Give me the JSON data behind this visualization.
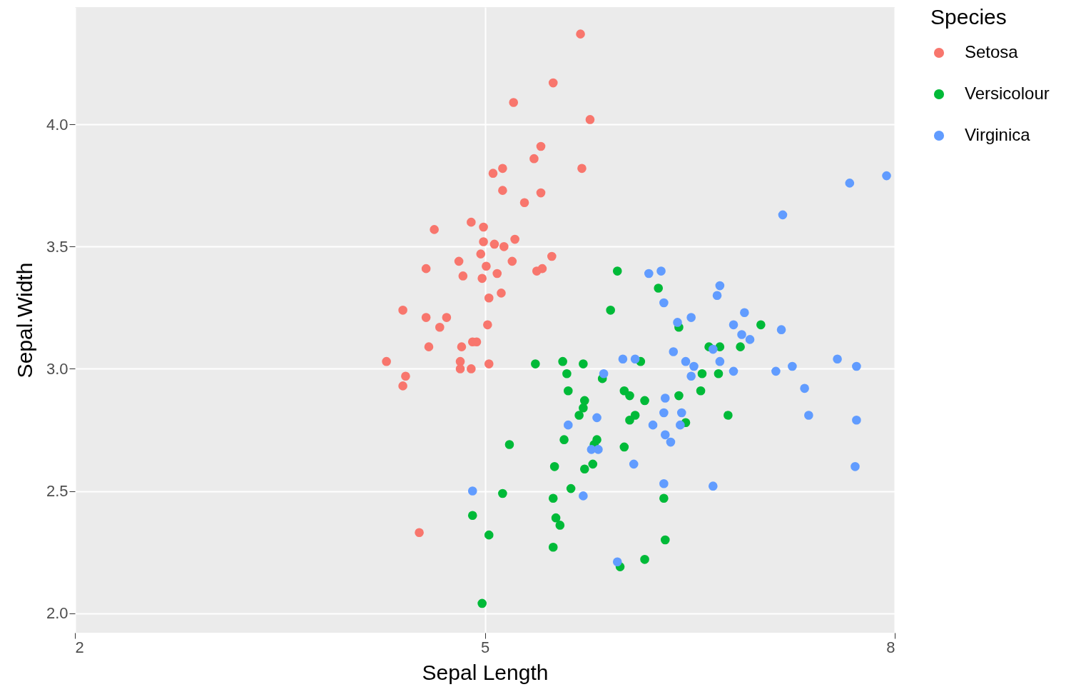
{
  "chart_data": {
    "type": "scatter",
    "xlabel": "Sepal Length",
    "ylabel": "Sepal.Width",
    "legend_title": "Species",
    "legend": "right",
    "grid": true,
    "marker": "circle",
    "xlim": [
      2,
      8
    ],
    "ylim": [
      1.92,
      4.48
    ],
    "xticks": [
      2,
      5,
      8
    ],
    "yticks": [
      {
        "value": 2,
        "label": "2.0"
      },
      {
        "value": 2.5,
        "label": "2.5"
      },
      {
        "value": 3,
        "label": "3.0"
      },
      {
        "value": 3.5,
        "label": "3.5"
      },
      {
        "value": 4,
        "label": "4.0"
      }
    ],
    "series": [
      {
        "name": "Setosa",
        "color": "#f8766d",
        "x": [
          5.7,
          5.5,
          5.21,
          5.77,
          5.41,
          5.36,
          5.13,
          5.06,
          5.71,
          5.13,
          5.41,
          5.29,
          4.63,
          4.9,
          4.99,
          4.99,
          5.07,
          5.14,
          5.22,
          4.97,
          5.49,
          4.81,
          5.2,
          5.01,
          4.57,
          5.42,
          5.38,
          4.84,
          5.09,
          4.98,
          5.12,
          5.03,
          4.4,
          4.57,
          4.72,
          4.67,
          5.02,
          4.94,
          4.91,
          4.59,
          4.83,
          4.28,
          4.82,
          5.03,
          4.9,
          4.82,
          4.42,
          4.4,
          4.52
        ],
        "values": [
          4.37,
          4.17,
          4.09,
          4.02,
          3.91,
          3.86,
          3.82,
          3.8,
          3.82,
          3.73,
          3.72,
          3.68,
          3.57,
          3.6,
          3.58,
          3.52,
          3.51,
          3.5,
          3.53,
          3.47,
          3.46,
          3.44,
          3.44,
          3.42,
          3.41,
          3.41,
          3.4,
          3.38,
          3.39,
          3.37,
          3.31,
          3.29,
          3.24,
          3.21,
          3.21,
          3.17,
          3.18,
          3.11,
          3.11,
          3.09,
          3.09,
          3.03,
          3.03,
          3.02,
          3.0,
          3.0,
          2.97,
          2.93,
          2.33
        ]
      },
      {
        "name": "Versicolour",
        "color": "#00ba38",
        "x": [
          5.97,
          6.27,
          5.92,
          6.42,
          7.02,
          6.64,
          6.72,
          6.87,
          5.37,
          5.57,
          5.72,
          6.14,
          5.6,
          6.59,
          6.71,
          5.86,
          6.02,
          6.06,
          5.61,
          6.58,
          6.42,
          6.17,
          5.73,
          5.72,
          5.69,
          6.1,
          6.78,
          6.06,
          6.47,
          5.82,
          5.58,
          5.18,
          6.02,
          5.8,
          5.79,
          5.73,
          5.51,
          5.63,
          5.13,
          5.5,
          6.31,
          4.91,
          5.52,
          5.55,
          5.03,
          6.32,
          5.5,
          6.17,
          5.99,
          4.98
        ],
        "values": [
          3.4,
          3.33,
          3.24,
          3.17,
          3.18,
          3.09,
          3.09,
          3.09,
          3.02,
          3.03,
          3.02,
          3.03,
          2.98,
          2.98,
          2.98,
          2.96,
          2.91,
          2.89,
          2.91,
          2.91,
          2.89,
          2.87,
          2.87,
          2.84,
          2.81,
          2.81,
          2.81,
          2.79,
          2.78,
          2.71,
          2.71,
          2.69,
          2.68,
          2.69,
          2.61,
          2.59,
          2.6,
          2.51,
          2.49,
          2.47,
          2.47,
          2.4,
          2.39,
          2.36,
          2.32,
          2.3,
          2.27,
          2.22,
          2.19,
          2.04
        ]
      },
      {
        "name": "Virginica",
        "color": "#619cff",
        "x": [
          7.94,
          7.67,
          7.18,
          6.2,
          6.29,
          6.72,
          6.7,
          6.31,
          6.9,
          6.51,
          6.41,
          6.82,
          7.17,
          6.88,
          6.94,
          6.67,
          6.38,
          6.01,
          6.1,
          7.58,
          6.47,
          6.72,
          6.53,
          7.25,
          7.72,
          6.82,
          7.13,
          5.87,
          6.51,
          7.34,
          6.32,
          6.31,
          6.44,
          5.82,
          7.37,
          7.72,
          6.23,
          6.43,
          5.61,
          6.32,
          6.36,
          5.78,
          5.83,
          6.09,
          7.71,
          6.31,
          6.67,
          4.91,
          5.72,
          5.97
        ],
        "values": [
          3.79,
          3.76,
          3.63,
          3.39,
          3.4,
          3.34,
          3.3,
          3.27,
          3.23,
          3.21,
          3.19,
          3.18,
          3.16,
          3.14,
          3.12,
          3.08,
          3.07,
          3.04,
          3.04,
          3.04,
          3.03,
          3.03,
          3.01,
          3.01,
          3.01,
          2.99,
          2.99,
          2.98,
          2.97,
          2.92,
          2.88,
          2.82,
          2.82,
          2.8,
          2.81,
          2.79,
          2.77,
          2.77,
          2.77,
          2.73,
          2.7,
          2.67,
          2.67,
          2.61,
          2.6,
          2.53,
          2.52,
          2.5,
          2.48,
          2.21
        ]
      }
    ]
  }
}
